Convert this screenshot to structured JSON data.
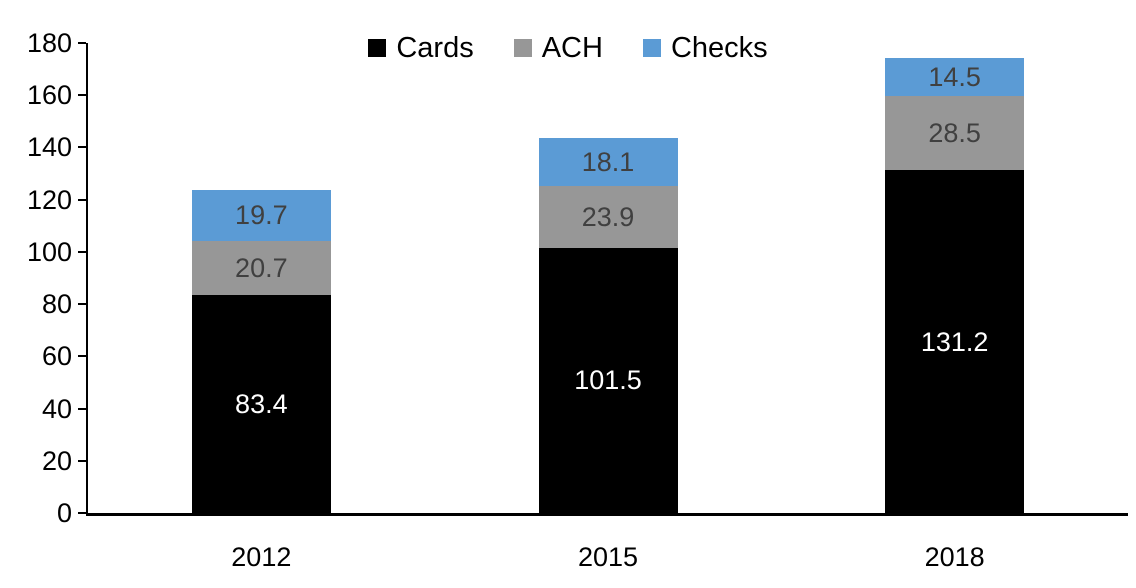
{
  "chart_data": {
    "type": "bar",
    "stacked": true,
    "title": "",
    "categories": [
      "2012",
      "2015",
      "2018"
    ],
    "series": [
      {
        "name": "Cards",
        "color": "#000000",
        "label_color": "#FFFFFF",
        "values": [
          83.4,
          101.5,
          131.2
        ]
      },
      {
        "name": "ACH",
        "color": "#979797",
        "label_color": "#404040",
        "values": [
          20.7,
          23.9,
          28.5
        ]
      },
      {
        "name": "Checks",
        "color": "#5B9BD5",
        "label_color": "#404040",
        "values": [
          19.7,
          18.1,
          14.5
        ]
      }
    ],
    "totals": [
      123.8,
      143.5,
      174.2
    ],
    "xlabel": "",
    "ylabel": "",
    "ylim": [
      0,
      180
    ],
    "yticks": [
      0,
      20,
      40,
      60,
      80,
      100,
      120,
      140,
      160,
      180
    ],
    "grid": false,
    "legend_position": "top",
    "axis_color": "#000000",
    "background_color": "#FFFFFF"
  }
}
